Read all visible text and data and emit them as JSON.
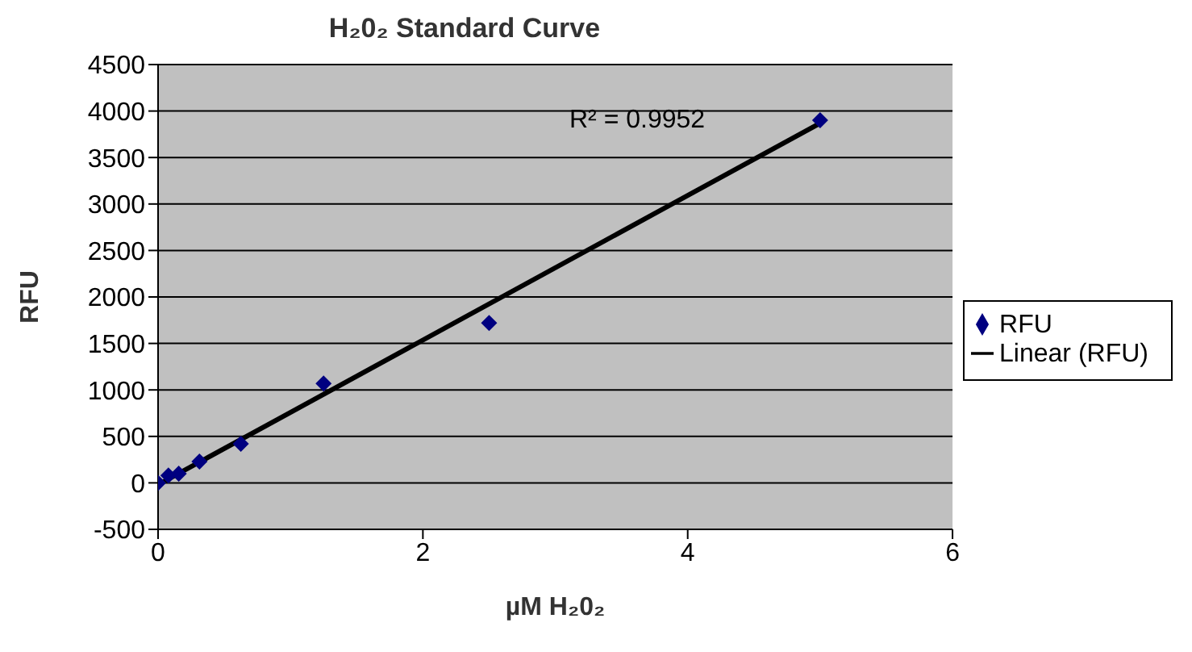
{
  "chart_data": {
    "type": "scatter",
    "title": "H₂0₂ Standard Curve",
    "xlabel": "µM H₂0₂",
    "ylabel": "RFU",
    "xlim": [
      0,
      6
    ],
    "xticks": [
      0,
      2,
      4,
      6
    ],
    "ylim": [
      -500,
      4500
    ],
    "yticks": [
      -500,
      0,
      500,
      1000,
      1500,
      2000,
      2500,
      3000,
      3500,
      4000,
      4500
    ],
    "grid": "y",
    "legend": "right",
    "series": [
      {
        "name": "RFU",
        "marker": "diamond",
        "color": "#000080",
        "x": [
          0,
          0.078,
          0.156,
          0.3125,
          0.625,
          1.25,
          2.5,
          5
        ],
        "values": [
          0,
          80,
          100,
          230,
          420,
          1070,
          1720,
          3900
        ]
      },
      {
        "name": "Linear (RFU)",
        "type": "line",
        "marker": "none",
        "color": "#000000",
        "x": [
          0,
          5
        ],
        "values": [
          -20,
          3870
        ]
      }
    ],
    "annotations": [
      "R² = 0.9952"
    ]
  }
}
